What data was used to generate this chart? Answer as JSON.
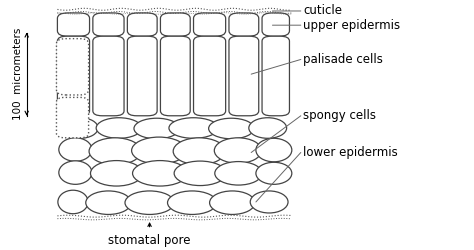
{
  "bg_color": "#ffffff",
  "line_color": "#444444",
  "dotted_color": "#555555",
  "labels": {
    "cuticle": "cuticle",
    "upper_epidermis": "upper epidermis",
    "palisade_cells": "palisade cells",
    "spongy_cells": "spongy cells",
    "lower_epidermis": "lower epidermis",
    "stomatal_pore": "stomatal pore",
    "scale": "100  micrometers"
  },
  "label_fontsize": 8.5,
  "figsize": [
    4.74,
    2.5
  ],
  "dpi": 100
}
